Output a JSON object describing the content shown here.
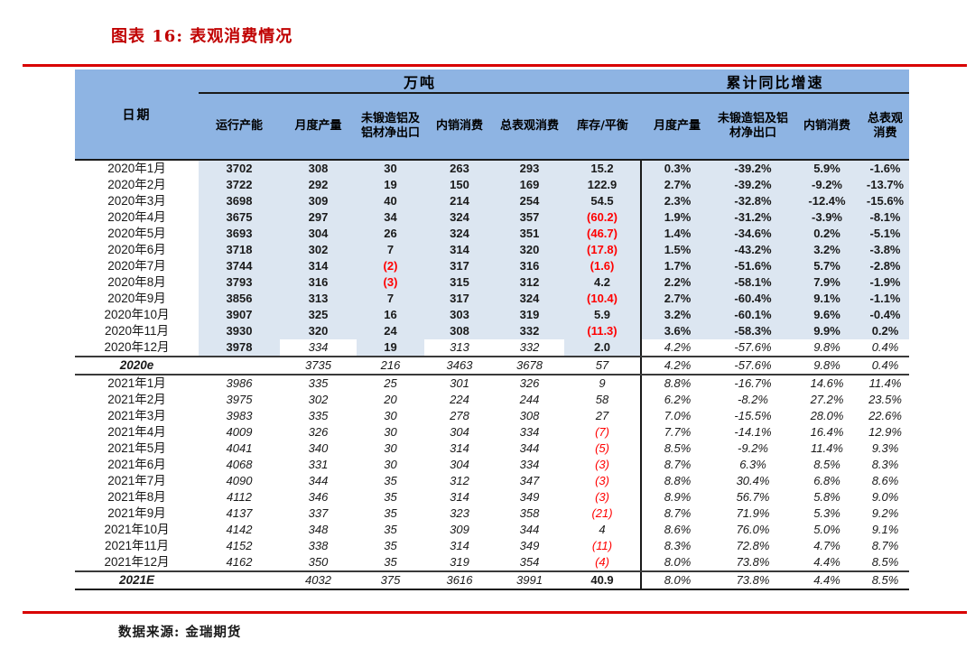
{
  "title": "图表 16: 表观消费情况",
  "footer": {
    "source_label": "数据来源: 金瑞期货"
  },
  "colors": {
    "header_blue": "#8eb4e3",
    "body_blue": "#dce6f1",
    "title_red": "#c00000",
    "rule_red": "#d80000",
    "negative_red": "#ff0000"
  },
  "chart_data": {
    "type": "table",
    "title": "图表 16: 表观消费情况",
    "source": "数据来源: 金瑞期货",
    "header": {
      "date": "日期",
      "groups": [
        {
          "label": "万吨",
          "span": 6
        },
        {
          "label": "累计同比增速",
          "span": 4
        }
      ],
      "columns": [
        "运行产能",
        "月度产量",
        "未锻造铝及铝材净出口",
        "内销消费",
        "总表观消费",
        "库存/平衡",
        "月度产量",
        "未锻造铝及铝材净出口",
        "内销消费",
        "总表观消费"
      ]
    },
    "style_legend": {
      "a": "actual bold on blue",
      "ar": "actual bold red (negative, parentheses)",
      "e": "estimate italic on white",
      "er": "estimate italic red (negative, parentheses)",
      "b": "bold upright on white"
    },
    "rows": [
      {
        "date": "2020年1月",
        "cells": [
          [
            "3702",
            "a"
          ],
          [
            "308",
            "a"
          ],
          [
            "30",
            "a"
          ],
          [
            "263",
            "a"
          ],
          [
            "293",
            "a"
          ],
          [
            "15.2",
            "a"
          ],
          [
            "0.3%",
            "a"
          ],
          [
            "-39.2%",
            "a"
          ],
          [
            "5.9%",
            "a"
          ],
          [
            "-1.6%",
            "a"
          ]
        ]
      },
      {
        "date": "2020年2月",
        "cells": [
          [
            "3722",
            "a"
          ],
          [
            "292",
            "a"
          ],
          [
            "19",
            "a"
          ],
          [
            "150",
            "a"
          ],
          [
            "169",
            "a"
          ],
          [
            "122.9",
            "a"
          ],
          [
            "2.7%",
            "a"
          ],
          [
            "-39.2%",
            "a"
          ],
          [
            "-9.2%",
            "a"
          ],
          [
            "-13.7%",
            "a"
          ]
        ]
      },
      {
        "date": "2020年3月",
        "cells": [
          [
            "3698",
            "a"
          ],
          [
            "309",
            "a"
          ],
          [
            "40",
            "a"
          ],
          [
            "214",
            "a"
          ],
          [
            "254",
            "a"
          ],
          [
            "54.5",
            "a"
          ],
          [
            "2.3%",
            "a"
          ],
          [
            "-32.8%",
            "a"
          ],
          [
            "-12.4%",
            "a"
          ],
          [
            "-15.6%",
            "a"
          ]
        ]
      },
      {
        "date": "2020年4月",
        "cells": [
          [
            "3675",
            "a"
          ],
          [
            "297",
            "a"
          ],
          [
            "34",
            "a"
          ],
          [
            "324",
            "a"
          ],
          [
            "357",
            "a"
          ],
          [
            "(60.2)",
            "ar"
          ],
          [
            "1.9%",
            "a"
          ],
          [
            "-31.2%",
            "a"
          ],
          [
            "-3.9%",
            "a"
          ],
          [
            "-8.1%",
            "a"
          ]
        ]
      },
      {
        "date": "2020年5月",
        "cells": [
          [
            "3693",
            "a"
          ],
          [
            "304",
            "a"
          ],
          [
            "26",
            "a"
          ],
          [
            "324",
            "a"
          ],
          [
            "351",
            "a"
          ],
          [
            "(46.7)",
            "ar"
          ],
          [
            "1.4%",
            "a"
          ],
          [
            "-34.6%",
            "a"
          ],
          [
            "0.2%",
            "a"
          ],
          [
            "-5.1%",
            "a"
          ]
        ]
      },
      {
        "date": "2020年6月",
        "cells": [
          [
            "3718",
            "a"
          ],
          [
            "302",
            "a"
          ],
          [
            "7",
            "a"
          ],
          [
            "314",
            "a"
          ],
          [
            "320",
            "a"
          ],
          [
            "(17.8)",
            "ar"
          ],
          [
            "1.5%",
            "a"
          ],
          [
            "-43.2%",
            "a"
          ],
          [
            "3.2%",
            "a"
          ],
          [
            "-3.8%",
            "a"
          ]
        ]
      },
      {
        "date": "2020年7月",
        "cells": [
          [
            "3744",
            "a"
          ],
          [
            "314",
            "a"
          ],
          [
            "(2)",
            "ar"
          ],
          [
            "317",
            "a"
          ],
          [
            "316",
            "a"
          ],
          [
            "(1.6)",
            "ar"
          ],
          [
            "1.7%",
            "a"
          ],
          [
            "-51.6%",
            "a"
          ],
          [
            "5.7%",
            "a"
          ],
          [
            "-2.8%",
            "a"
          ]
        ]
      },
      {
        "date": "2020年8月",
        "cells": [
          [
            "3793",
            "a"
          ],
          [
            "316",
            "a"
          ],
          [
            "(3)",
            "ar"
          ],
          [
            "315",
            "a"
          ],
          [
            "312",
            "a"
          ],
          [
            "4.2",
            "a"
          ],
          [
            "2.2%",
            "a"
          ],
          [
            "-58.1%",
            "a"
          ],
          [
            "7.9%",
            "a"
          ],
          [
            "-1.9%",
            "a"
          ]
        ]
      },
      {
        "date": "2020年9月",
        "cells": [
          [
            "3856",
            "a"
          ],
          [
            "313",
            "a"
          ],
          [
            "7",
            "a"
          ],
          [
            "317",
            "a"
          ],
          [
            "324",
            "a"
          ],
          [
            "(10.4)",
            "ar"
          ],
          [
            "2.7%",
            "a"
          ],
          [
            "-60.4%",
            "a"
          ],
          [
            "9.1%",
            "a"
          ],
          [
            "-1.1%",
            "a"
          ]
        ]
      },
      {
        "date": "2020年10月",
        "cells": [
          [
            "3907",
            "a"
          ],
          [
            "325",
            "a"
          ],
          [
            "16",
            "a"
          ],
          [
            "303",
            "a"
          ],
          [
            "319",
            "a"
          ],
          [
            "5.9",
            "a"
          ],
          [
            "3.2%",
            "a"
          ],
          [
            "-60.1%",
            "a"
          ],
          [
            "9.6%",
            "a"
          ],
          [
            "-0.4%",
            "a"
          ]
        ]
      },
      {
        "date": "2020年11月",
        "cells": [
          [
            "3930",
            "a"
          ],
          [
            "320",
            "a"
          ],
          [
            "24",
            "a"
          ],
          [
            "308",
            "a"
          ],
          [
            "332",
            "a"
          ],
          [
            "(11.3)",
            "ar"
          ],
          [
            "3.6%",
            "a"
          ],
          [
            "-58.3%",
            "a"
          ],
          [
            "9.9%",
            "a"
          ],
          [
            "0.2%",
            "a"
          ]
        ]
      },
      {
        "date": "2020年12月",
        "sep": true,
        "cells": [
          [
            "3978",
            "a"
          ],
          [
            "334",
            "e"
          ],
          [
            "19",
            "a"
          ],
          [
            "313",
            "e"
          ],
          [
            "332",
            "e"
          ],
          [
            "2.0",
            "a"
          ],
          [
            "4.2%",
            "e"
          ],
          [
            "-57.6%",
            "e"
          ],
          [
            "9.8%",
            "e"
          ],
          [
            "0.4%",
            "e"
          ]
        ]
      },
      {
        "date": "2020e",
        "date_italic": true,
        "sep": true,
        "cells": [
          [
            "",
            ""
          ],
          [
            "3735",
            "e"
          ],
          [
            "216",
            "e"
          ],
          [
            "3463",
            "e"
          ],
          [
            "3678",
            "e"
          ],
          [
            "57",
            "e"
          ],
          [
            "4.2%",
            "e"
          ],
          [
            "-57.6%",
            "e"
          ],
          [
            "9.8%",
            "e"
          ],
          [
            "0.4%",
            "e"
          ]
        ]
      },
      {
        "date": "2021年1月",
        "cells": [
          [
            "3986",
            "e"
          ],
          [
            "335",
            "e"
          ],
          [
            "25",
            "e"
          ],
          [
            "301",
            "e"
          ],
          [
            "326",
            "e"
          ],
          [
            "9",
            "e"
          ],
          [
            "8.8%",
            "e"
          ],
          [
            "-16.7%",
            "e"
          ],
          [
            "14.6%",
            "e"
          ],
          [
            "11.4%",
            "e"
          ]
        ]
      },
      {
        "date": "2021年2月",
        "cells": [
          [
            "3975",
            "e"
          ],
          [
            "302",
            "e"
          ],
          [
            "20",
            "e"
          ],
          [
            "224",
            "e"
          ],
          [
            "244",
            "e"
          ],
          [
            "58",
            "e"
          ],
          [
            "6.2%",
            "e"
          ],
          [
            "-8.2%",
            "e"
          ],
          [
            "27.2%",
            "e"
          ],
          [
            "23.5%",
            "e"
          ]
        ]
      },
      {
        "date": "2021年3月",
        "cells": [
          [
            "3983",
            "e"
          ],
          [
            "335",
            "e"
          ],
          [
            "30",
            "e"
          ],
          [
            "278",
            "e"
          ],
          [
            "308",
            "e"
          ],
          [
            "27",
            "e"
          ],
          [
            "7.0%",
            "e"
          ],
          [
            "-15.5%",
            "e"
          ],
          [
            "28.0%",
            "e"
          ],
          [
            "22.6%",
            "e"
          ]
        ]
      },
      {
        "date": "2021年4月",
        "cells": [
          [
            "4009",
            "e"
          ],
          [
            "326",
            "e"
          ],
          [
            "30",
            "e"
          ],
          [
            "304",
            "e"
          ],
          [
            "334",
            "e"
          ],
          [
            "(7)",
            "er"
          ],
          [
            "7.7%",
            "e"
          ],
          [
            "-14.1%",
            "e"
          ],
          [
            "16.4%",
            "e"
          ],
          [
            "12.9%",
            "e"
          ]
        ]
      },
      {
        "date": "2021年5月",
        "cells": [
          [
            "4041",
            "e"
          ],
          [
            "340",
            "e"
          ],
          [
            "30",
            "e"
          ],
          [
            "314",
            "e"
          ],
          [
            "344",
            "e"
          ],
          [
            "(5)",
            "er"
          ],
          [
            "8.5%",
            "e"
          ],
          [
            "-9.2%",
            "e"
          ],
          [
            "11.4%",
            "e"
          ],
          [
            "9.3%",
            "e"
          ]
        ]
      },
      {
        "date": "2021年6月",
        "cells": [
          [
            "4068",
            "e"
          ],
          [
            "331",
            "e"
          ],
          [
            "30",
            "e"
          ],
          [
            "304",
            "e"
          ],
          [
            "334",
            "e"
          ],
          [
            "(3)",
            "er"
          ],
          [
            "8.7%",
            "e"
          ],
          [
            "6.3%",
            "e"
          ],
          [
            "8.5%",
            "e"
          ],
          [
            "8.3%",
            "e"
          ]
        ]
      },
      {
        "date": "2021年7月",
        "cells": [
          [
            "4090",
            "e"
          ],
          [
            "344",
            "e"
          ],
          [
            "35",
            "e"
          ],
          [
            "312",
            "e"
          ],
          [
            "347",
            "e"
          ],
          [
            "(3)",
            "er"
          ],
          [
            "8.8%",
            "e"
          ],
          [
            "30.4%",
            "e"
          ],
          [
            "6.8%",
            "e"
          ],
          [
            "8.6%",
            "e"
          ]
        ]
      },
      {
        "date": "2021年8月",
        "cells": [
          [
            "4112",
            "e"
          ],
          [
            "346",
            "e"
          ],
          [
            "35",
            "e"
          ],
          [
            "314",
            "e"
          ],
          [
            "349",
            "e"
          ],
          [
            "(3)",
            "er"
          ],
          [
            "8.9%",
            "e"
          ],
          [
            "56.7%",
            "e"
          ],
          [
            "5.8%",
            "e"
          ],
          [
            "9.0%",
            "e"
          ]
        ]
      },
      {
        "date": "2021年9月",
        "cells": [
          [
            "4137",
            "e"
          ],
          [
            "337",
            "e"
          ],
          [
            "35",
            "e"
          ],
          [
            "323",
            "e"
          ],
          [
            "358",
            "e"
          ],
          [
            "(21)",
            "er"
          ],
          [
            "8.7%",
            "e"
          ],
          [
            "71.9%",
            "e"
          ],
          [
            "5.3%",
            "e"
          ],
          [
            "9.2%",
            "e"
          ]
        ]
      },
      {
        "date": "2021年10月",
        "cells": [
          [
            "4142",
            "e"
          ],
          [
            "348",
            "e"
          ],
          [
            "35",
            "e"
          ],
          [
            "309",
            "e"
          ],
          [
            "344",
            "e"
          ],
          [
            "4",
            "e"
          ],
          [
            "8.6%",
            "e"
          ],
          [
            "76.0%",
            "e"
          ],
          [
            "5.0%",
            "e"
          ],
          [
            "9.1%",
            "e"
          ]
        ]
      },
      {
        "date": "2021年11月",
        "cells": [
          [
            "4152",
            "e"
          ],
          [
            "338",
            "e"
          ],
          [
            "35",
            "e"
          ],
          [
            "314",
            "e"
          ],
          [
            "349",
            "e"
          ],
          [
            "(11)",
            "er"
          ],
          [
            "8.3%",
            "e"
          ],
          [
            "72.8%",
            "e"
          ],
          [
            "4.7%",
            "e"
          ],
          [
            "8.7%",
            "e"
          ]
        ]
      },
      {
        "date": "2021年12月",
        "sep": true,
        "cells": [
          [
            "4162",
            "e"
          ],
          [
            "350",
            "e"
          ],
          [
            "35",
            "e"
          ],
          [
            "319",
            "e"
          ],
          [
            "354",
            "e"
          ],
          [
            "(4)",
            "er"
          ],
          [
            "8.0%",
            "e"
          ],
          [
            "73.8%",
            "e"
          ],
          [
            "4.4%",
            "e"
          ],
          [
            "8.5%",
            "e"
          ]
        ]
      },
      {
        "date": "2021E",
        "date_italic": true,
        "cells": [
          [
            "",
            ""
          ],
          [
            "4032",
            "e"
          ],
          [
            "375",
            "e"
          ],
          [
            "3616",
            "e"
          ],
          [
            "3991",
            "e"
          ],
          [
            "40.9",
            "b"
          ],
          [
            "8.0%",
            "e"
          ],
          [
            "73.8%",
            "e"
          ],
          [
            "4.4%",
            "e"
          ],
          [
            "8.5%",
            "e"
          ]
        ]
      }
    ]
  }
}
